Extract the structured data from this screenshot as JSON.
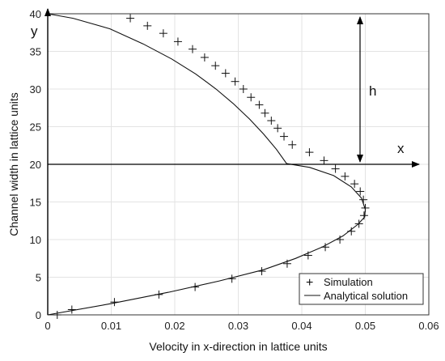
{
  "chart_data": {
    "type": "line",
    "xlabel": "Velocity in x-direction in lattice units",
    "ylabel": "Channel width in lattice units",
    "xlim": [
      0,
      0.06
    ],
    "ylim": [
      0,
      40
    ],
    "xticks": [
      "0",
      "0.01",
      "0.02",
      "0.03",
      "0.04",
      "0.05",
      "0.06"
    ],
    "yticks": [
      "0",
      "5",
      "10",
      "15",
      "20",
      "25",
      "30",
      "35",
      "40"
    ],
    "grid": true,
    "legend_position": "bottom-right",
    "annotations": {
      "y_axis_label": "y",
      "x_axis_label": "x",
      "height_label": "h",
      "interface_y": 20
    },
    "series": [
      {
        "name": "Simulation",
        "marker": "+",
        "x": [
          0.0038,
          0.0105,
          0.0175,
          0.0232,
          0.029,
          0.0337,
          0.0377,
          0.041,
          0.0437,
          0.046,
          0.0478,
          0.049,
          0.0498,
          0.05,
          0.0497,
          0.0492,
          0.0483,
          0.0468,
          0.0453,
          0.0435,
          0.0412,
          0.0385,
          0.0372,
          0.0362,
          0.0352,
          0.0342,
          0.0333,
          0.032,
          0.0308,
          0.0295,
          0.028,
          0.0264,
          0.0247,
          0.0228,
          0.0205,
          0.0182,
          0.0157,
          0.013,
          0.0103,
          0.0073,
          0.004,
          0.0015
        ],
        "y": [
          0.7,
          1.7,
          2.7,
          3.7,
          4.8,
          5.8,
          6.8,
          7.9,
          9.0,
          10.0,
          11.1,
          12.1,
          13.2,
          14.2,
          15.3,
          16.4,
          17.4,
          18.4,
          19.4,
          20.5,
          21.6,
          22.6,
          23.7,
          24.8,
          25.8,
          26.8,
          27.9,
          28.9,
          30.0,
          31.0,
          32.1,
          33.1,
          34.2,
          35.3,
          36.3,
          37.4,
          38.4,
          39.4,
          0,
          0,
          0,
          0
        ]
      },
      {
        "name": "Analytical solution",
        "x": [
          0,
          0.01,
          0.019,
          0.027,
          0.034,
          0.039,
          0.0432,
          0.0465,
          0.0488,
          0.0499,
          0.05,
          0.0494,
          0.0478,
          0.045,
          0.0412,
          0.0376,
          0.036,
          0.034,
          0.0318,
          0.0293,
          0.0265,
          0.0233,
          0.0195,
          0.015,
          0.0098,
          0.004,
          0
        ],
        "y": [
          0,
          1.5,
          3.0,
          4.5,
          6.0,
          7.5,
          9.0,
          10.5,
          12.0,
          13.0,
          14.0,
          15.5,
          17.0,
          18.5,
          19.6,
          20.1,
          22.0,
          24.0,
          26.0,
          28.0,
          30.0,
          32.0,
          34.0,
          36.0,
          38.0,
          39.4,
          40.0
        ]
      }
    ]
  }
}
